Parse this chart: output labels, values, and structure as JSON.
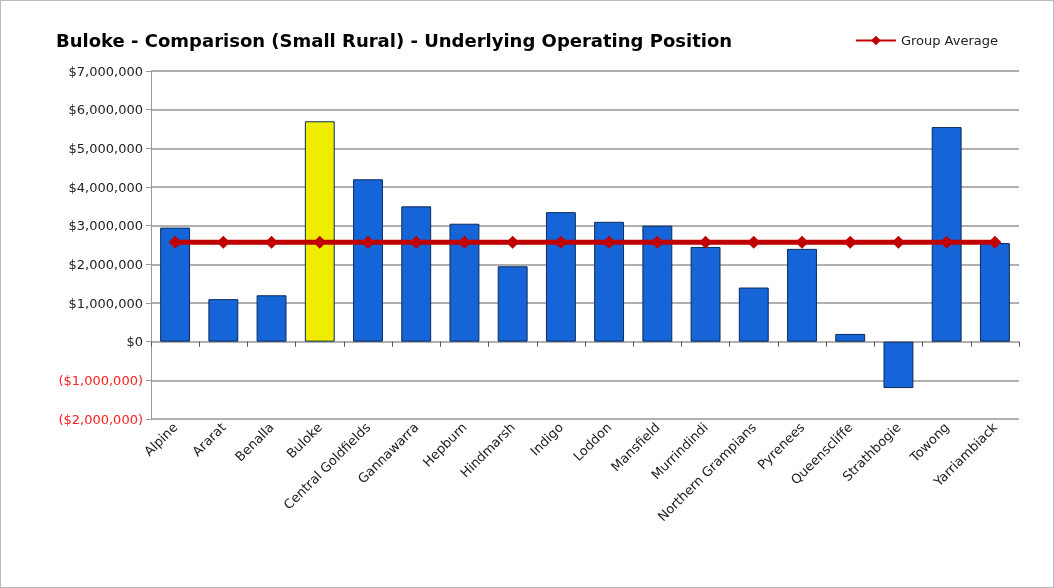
{
  "chart_data": {
    "type": "bar",
    "title": "Buloke - Comparison (Small Rural) - Underlying Operating Position",
    "categories": [
      "Alpine",
      "Ararat",
      "Benalla",
      "Buloke",
      "Central Goldfields",
      "Gannawarra",
      "Hepburn",
      "Hindmarsh",
      "Indigo",
      "Loddon",
      "Mansfield",
      "Murrindindi",
      "Northern Grampians",
      "Pyrenees",
      "Queenscliffe",
      "Strathbogie",
      "Towong",
      "Yarriambiack"
    ],
    "series": [
      {
        "colors": [
          "#1565d8",
          "#1565d8",
          "#1565d8",
          "#f0ec00",
          "#1565d8",
          "#1565d8",
          "#1565d8",
          "#1565d8",
          "#1565d8",
          "#1565d8",
          "#1565d8",
          "#1565d8",
          "#1565d8",
          "#1565d8",
          "#1565d8",
          "#1565d8",
          "#1565d8",
          "#1565d8"
        ],
        "values": [
          2950000,
          1100000,
          1200000,
          5700000,
          4200000,
          3500000,
          3050000,
          1950000,
          3350000,
          3100000,
          3000000,
          2450000,
          1400000,
          2400000,
          200000,
          -1200000,
          5550000,
          2550000
        ]
      },
      {
        "type": "line",
        "name": "Group Average",
        "color": "#c00000",
        "marker": "diamond",
        "values": [
          2570000,
          2570000,
          2570000,
          2570000,
          2570000,
          2570000,
          2570000,
          2570000,
          2570000,
          2570000,
          2570000,
          2570000,
          2570000,
          2570000,
          2570000,
          2570000,
          2570000,
          2570000
        ]
      }
    ],
    "ylim": [
      -2000000,
      7000000
    ],
    "yticks": [
      {
        "value": -2000000,
        "label": "($2,000,000)"
      },
      {
        "value": -1000000,
        "label": "($1,000,000)"
      },
      {
        "value": 0,
        "label": "$0"
      },
      {
        "value": 1000000,
        "label": "$1,000,000"
      },
      {
        "value": 2000000,
        "label": "$2,000,000"
      },
      {
        "value": 3000000,
        "label": "$3,000,000"
      },
      {
        "value": 4000000,
        "label": "$4,000,000"
      },
      {
        "value": 5000000,
        "label": "$5,000,000"
      },
      {
        "value": 6000000,
        "label": "$6,000,000"
      },
      {
        "value": 7000000,
        "label": "$7,000,000"
      }
    ],
    "grid": "y",
    "legend": "top right"
  }
}
